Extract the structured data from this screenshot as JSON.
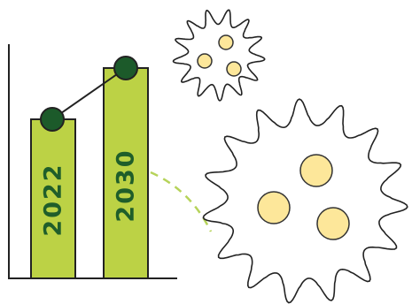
{
  "labels": [
    "2022",
    "2030"
  ]
}
